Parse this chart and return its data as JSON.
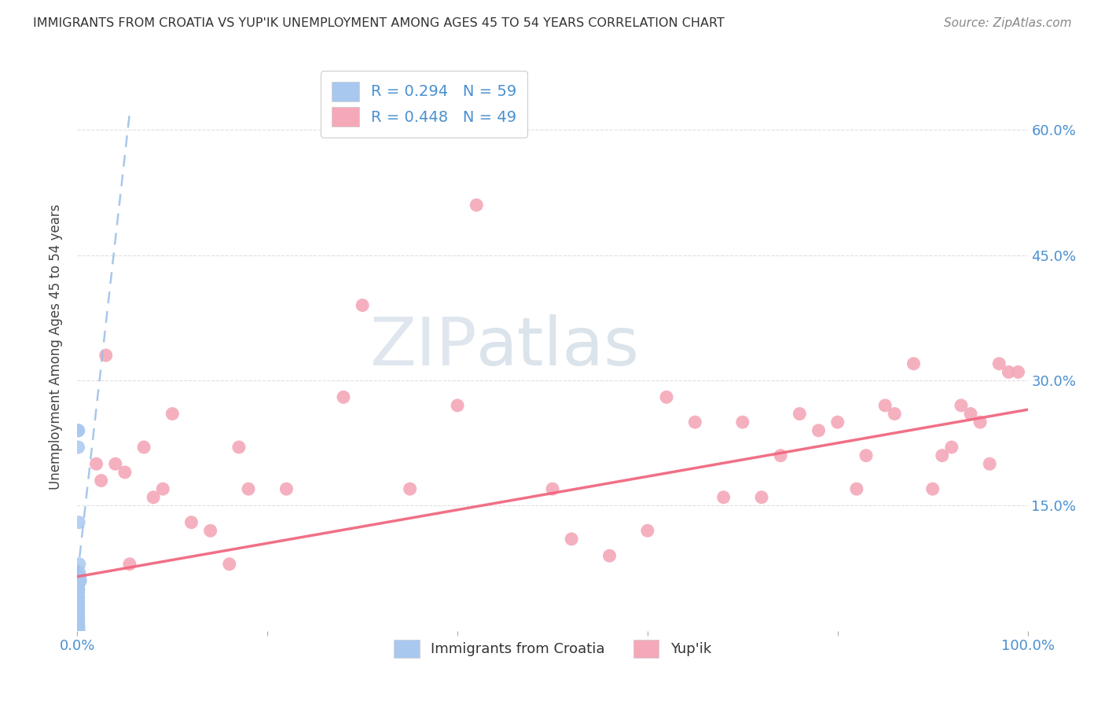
{
  "title": "IMMIGRANTS FROM CROATIA VS YUP'IK UNEMPLOYMENT AMONG AGES 45 TO 54 YEARS CORRELATION CHART",
  "source": "Source: ZipAtlas.com",
  "ylabel": "Unemployment Among Ages 45 to 54 years",
  "xlim": [
    0,
    1.0
  ],
  "ylim": [
    0,
    0.68
  ],
  "ytick_vals": [
    0.0,
    0.15,
    0.3,
    0.45,
    0.6
  ],
  "legend_r1": "R = 0.294",
  "legend_n1": "N = 59",
  "legend_r2": "R = 0.448",
  "legend_n2": "N = 49",
  "legend_label1": "Immigrants from Croatia",
  "legend_label2": "Yup'ik",
  "watermark_zip": "ZIP",
  "watermark_atlas": "atlas",
  "blue_color": "#A8C8F0",
  "pink_color": "#F4A8B8",
  "blue_line_color": "#9ABDE8",
  "pink_line_color": "#F06880",
  "title_color": "#333333",
  "axis_label_color": "#444444",
  "tick_color": "#4A90D0",
  "grid_color": "#E0E0E0",
  "blue_scatter_x": [
    0.001,
    0.001,
    0.001,
    0.0015,
    0.002,
    0.002,
    0.002,
    0.0025,
    0.003,
    0.003,
    0.001,
    0.001,
    0.001,
    0.001,
    0.001,
    0.001,
    0.001,
    0.001,
    0.001,
    0.001,
    0.001,
    0.001,
    0.001,
    0.001,
    0.001,
    0.001,
    0.001,
    0.001,
    0.001,
    0.001,
    0.001,
    0.001,
    0.001,
    0.001,
    0.001,
    0.001,
    0.001,
    0.001,
    0.001,
    0.001,
    0.001,
    0.001,
    0.001,
    0.001,
    0.001,
    0.001,
    0.001,
    0.001,
    0.001,
    0.001,
    0.001,
    0.001,
    0.001,
    0.001,
    0.001,
    0.001,
    0.001,
    0.001,
    0.001
  ],
  "blue_scatter_y": [
    0.24,
    0.24,
    0.22,
    0.13,
    0.08,
    0.07,
    0.065,
    0.065,
    0.06,
    0.06,
    0.055,
    0.055,
    0.05,
    0.05,
    0.05,
    0.048,
    0.045,
    0.04,
    0.04,
    0.04,
    0.035,
    0.035,
    0.03,
    0.03,
    0.025,
    0.025,
    0.02,
    0.02,
    0.02,
    0.015,
    0.015,
    0.015,
    0.012,
    0.01,
    0.01,
    0.01,
    0.008,
    0.008,
    0.007,
    0.006,
    0.005,
    0.005,
    0.004,
    0.004,
    0.003,
    0.003,
    0.002,
    0.002,
    0.001,
    0.001,
    0.001,
    0.0,
    0.0,
    0.0,
    0.0,
    0.0,
    0.0,
    0.0,
    0.0
  ],
  "pink_scatter_x": [
    0.02,
    0.025,
    0.03,
    0.04,
    0.05,
    0.055,
    0.07,
    0.08,
    0.09,
    0.1,
    0.12,
    0.14,
    0.16,
    0.17,
    0.18,
    0.22,
    0.28,
    0.3,
    0.35,
    0.4,
    0.42,
    0.5,
    0.52,
    0.56,
    0.6,
    0.62,
    0.65,
    0.68,
    0.7,
    0.72,
    0.74,
    0.76,
    0.78,
    0.8,
    0.82,
    0.83,
    0.85,
    0.86,
    0.88,
    0.9,
    0.91,
    0.92,
    0.93,
    0.94,
    0.95,
    0.96,
    0.97,
    0.98,
    0.99
  ],
  "pink_scatter_y": [
    0.2,
    0.18,
    0.33,
    0.2,
    0.19,
    0.08,
    0.22,
    0.16,
    0.17,
    0.26,
    0.13,
    0.12,
    0.08,
    0.22,
    0.17,
    0.17,
    0.28,
    0.39,
    0.17,
    0.27,
    0.51,
    0.17,
    0.11,
    0.09,
    0.12,
    0.28,
    0.25,
    0.16,
    0.25,
    0.16,
    0.21,
    0.26,
    0.24,
    0.25,
    0.17,
    0.21,
    0.27,
    0.26,
    0.32,
    0.17,
    0.21,
    0.22,
    0.27,
    0.26,
    0.25,
    0.2,
    0.32,
    0.31,
    0.31
  ],
  "blue_trend_x": [
    0.0,
    0.055
  ],
  "blue_trend_y": [
    0.065,
    0.62
  ],
  "pink_trend_x": [
    0.0,
    1.0
  ],
  "pink_trend_y": [
    0.065,
    0.265
  ],
  "figsize": [
    14.06,
    8.92
  ],
  "dpi": 100
}
